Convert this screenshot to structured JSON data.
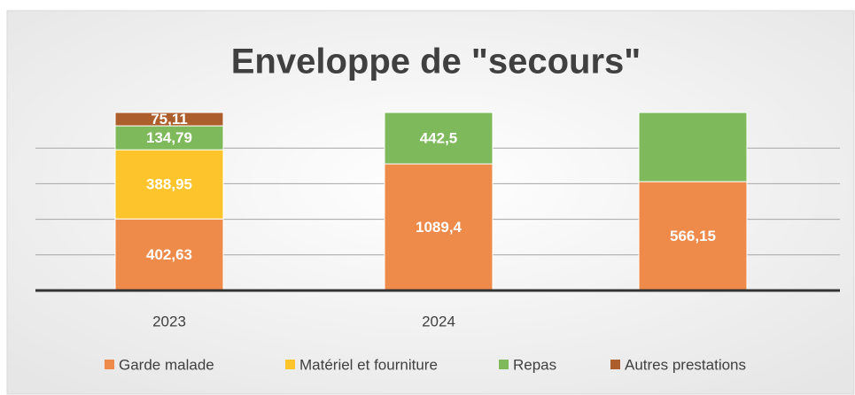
{
  "chart_data": {
    "type": "bar",
    "stacking": "percent",
    "title": "Enveloppe de \"secours\"",
    "categories": [
      "2023",
      "2024",
      null
    ],
    "series": [
      {
        "name": "Garde malade",
        "color": "#ee8b4b",
        "values": [
          402.63,
          1089.4,
          566.15
        ],
        "value_labels": [
          "402,63",
          "1089,4",
          "566,15"
        ]
      },
      {
        "name": "Matériel et fourniture",
        "color": "#fdc42b",
        "values": [
          388.95,
          null,
          null
        ],
        "value_labels": [
          "388,95",
          null,
          null
        ]
      },
      {
        "name": "Repas",
        "color": "#7eb95c",
        "values": [
          134.79,
          442.5,
          360
        ],
        "value_labels": [
          "134,79",
          "442,5",
          null
        ]
      },
      {
        "name": "Autres prestations",
        "color": "#ac5f2c",
        "values": [
          75.11,
          null,
          null
        ],
        "value_labels": [
          "75,11",
          null,
          null
        ]
      }
    ],
    "ylim": [
      0,
      100
    ],
    "yticks": [
      0,
      20,
      40,
      60,
      80,
      100
    ],
    "grid": true,
    "legend": "bottom"
  }
}
